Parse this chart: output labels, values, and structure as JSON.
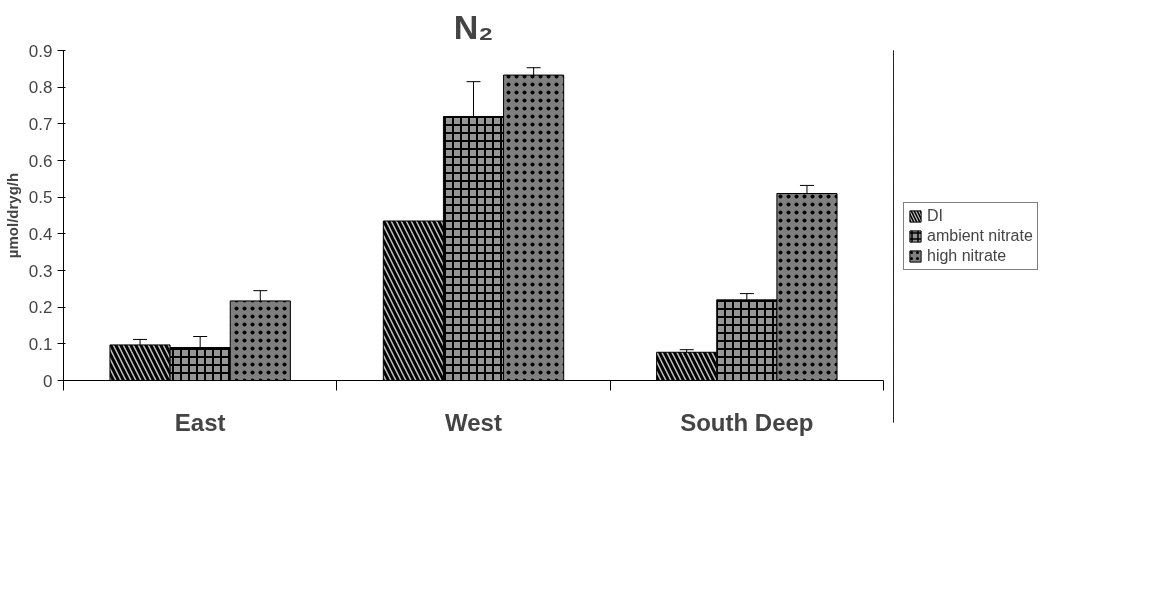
{
  "chart_data": {
    "type": "bar",
    "title": "N₂",
    "ylabel": "µmol/dryg/h",
    "categories": [
      "East",
      "West",
      "South Deep"
    ],
    "series": [
      {
        "name": "DI",
        "color": "#c0c0c0",
        "values": [
          0.097,
          0.435,
          0.077
        ],
        "errors": [
          0.015,
          null,
          0.007
        ]
      },
      {
        "name": "ambient nitrate",
        "color": "#969696",
        "values": [
          0.09,
          0.72,
          0.22
        ],
        "errors": [
          0.03,
          0.095,
          0.017
        ]
      },
      {
        "name": "high nitrate",
        "color": "#808080",
        "values": [
          0.217,
          0.833,
          0.51
        ],
        "errors": [
          0.028,
          0.02,
          0.022
        ]
      }
    ],
    "ylim": [
      0,
      0.9
    ],
    "yticks": [
      0,
      0.1,
      0.2,
      0.3,
      0.4,
      0.5,
      0.6,
      0.7,
      0.8,
      0.9
    ],
    "grid": false,
    "legend": "right"
  }
}
